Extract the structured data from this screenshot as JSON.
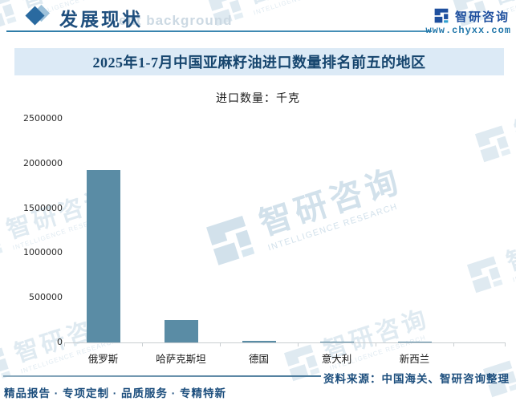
{
  "header": {
    "section_title": "发展现状",
    "background_watermark_text": "ent background",
    "brand_name": "智研咨询",
    "brand_url": "www.chyxx.com"
  },
  "chart_data": {
    "type": "bar",
    "title": "2025年1-7月中国亚麻籽油进口数量排名前五的地区",
    "unit_label": "进口数量：千克",
    "categories": [
      "俄罗斯",
      "哈萨克斯坦",
      "德国",
      "意大利",
      "新西兰"
    ],
    "values": [
      1930000,
      255000,
      15000,
      11000,
      12000
    ],
    "ylim": [
      0,
      2500000
    ],
    "yticks": [
      0,
      500000,
      1000000,
      1500000,
      2000000,
      2500000
    ],
    "bar_color": "#5a8ca5",
    "grid": "off",
    "legend": "none"
  },
  "watermark": {
    "brand": "智研咨询",
    "caption": "INTELLIGENCE RESEARCH"
  },
  "footer": {
    "source": "资料来源：中国海关、智研咨询整理",
    "tagline": "精品报告 · 专项定制 · 品质服务 · 专精特新"
  },
  "colors": {
    "bar": "#5a8ca5",
    "accent_dark_blue": "#1c4e7d",
    "banner_bg": "#dceaf6",
    "brand_blue": "#1e4f9e",
    "watermark_blue": "#aec9dc"
  }
}
